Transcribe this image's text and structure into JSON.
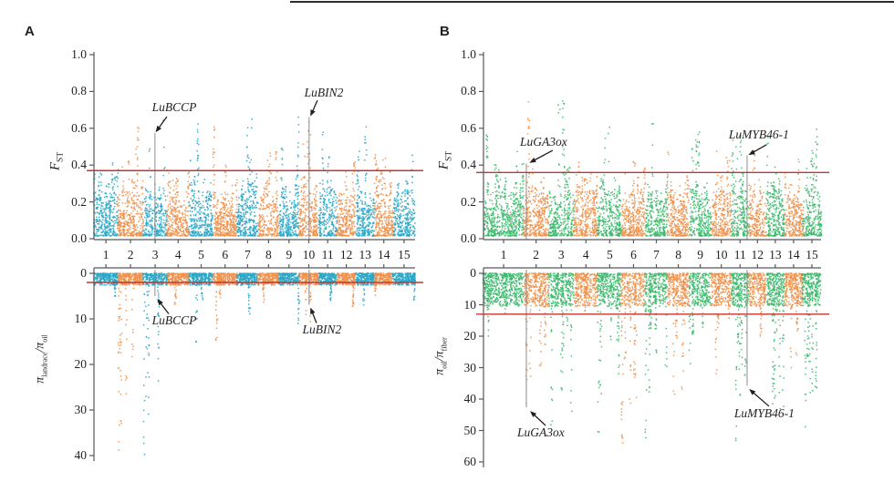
{
  "figure": {
    "panels": [
      {
        "letter": "A"
      },
      {
        "letter": "B"
      }
    ]
  },
  "colors": {
    "panel_a_points": [
      "#2BA7C6",
      "#F0914B"
    ],
    "panel_b_points": [
      "#3EB96E",
      "#F0914B"
    ],
    "threshold_line": "#C23531",
    "axis": "#57585A",
    "text": "#231F20",
    "leader_line": "#8C8C8C"
  },
  "chart_data": [
    {
      "id": "A-fst",
      "panel": "A",
      "position": "top",
      "type": "scatter",
      "ylabel": {
        "base": "F",
        "sub": "ST"
      },
      "ylim": [
        0,
        1.0
      ],
      "yticks": [
        "0.0",
        "0.2",
        "0.4",
        "0.6",
        "0.8",
        "1.0"
      ],
      "threshold": 0.37,
      "categories": [
        "1",
        "2",
        "3",
        "4",
        "5",
        "6",
        "7",
        "8",
        "9",
        "10",
        "11",
        "12",
        "13",
        "14",
        "15"
      ],
      "chrom_weights": [
        26,
        27.5,
        26,
        24,
        26,
        26,
        23,
        22.5,
        22,
        21,
        20,
        20.5,
        20.5,
        20,
        24
      ],
      "chrom_max": [
        0.37,
        0.63,
        0.66,
        0.4,
        0.66,
        0.63,
        0.68,
        0.52,
        0.68,
        0.67,
        0.63,
        0.5,
        0.62,
        0.44,
        0.54
      ],
      "annotations": [
        {
          "gene": "LuBCCP",
          "leader_fx": 0.19,
          "leader_v": 0.575,
          "label_fx": 0.25,
          "label_v": 0.713,
          "arrow": [
            0.227,
            0.663,
            0.192,
            0.578
          ]
        },
        {
          "gene": "LuBIN2",
          "leader_fx": 0.67,
          "leader_v": 0.66,
          "label_fx": 0.716,
          "label_v": 0.792,
          "arrow": [
            0.696,
            0.752,
            0.674,
            0.665
          ]
        }
      ]
    },
    {
      "id": "A-pi",
      "panel": "A",
      "position": "bottom",
      "type": "scatter",
      "ylabel": {
        "base": "π",
        "sub": "landrace",
        "mid": "/π",
        "sub2": "oil"
      },
      "ylim": [
        0,
        40
      ],
      "inverted": true,
      "yticks": [
        "0",
        "10",
        "20",
        "30",
        "40"
      ],
      "threshold": 2,
      "categories": [
        "1",
        "2",
        "3",
        "4",
        "5",
        "6",
        "7",
        "8",
        "9",
        "10",
        "11",
        "12",
        "13",
        "14",
        "15"
      ],
      "chrom_weights": [
        26,
        27.5,
        26,
        24,
        26,
        26,
        23,
        22.5,
        22,
        21,
        20,
        20.5,
        20.5,
        20,
        24
      ],
      "band_max": 2.6,
      "chrom_max": [
        6,
        39,
        40,
        8,
        16,
        15,
        9,
        7,
        11,
        12,
        6,
        8,
        7,
        5,
        6
      ],
      "annotations": [
        {
          "gene": "LuBCCP",
          "leader_fx": 0.19,
          "leader_v": 5.0,
          "label_fx": 0.25,
          "label_v": 10.4,
          "arrow": [
            0.233,
            8.9,
            0.197,
            5.6
          ]
        },
        {
          "gene": "LuBIN2",
          "leader_fx": 0.67,
          "leader_v": 6.9,
          "label_fx": 0.71,
          "label_v": 12.4,
          "arrow": [
            0.693,
            10.9,
            0.674,
            7.5
          ]
        }
      ]
    },
    {
      "id": "B-fst",
      "panel": "B",
      "position": "top",
      "type": "scatter",
      "ylabel": {
        "base": "F",
        "sub": "ST"
      },
      "ylim": [
        0,
        1.0
      ],
      "yticks": [
        "0.0",
        "0.2",
        "0.4",
        "0.6",
        "0.8",
        "1.0"
      ],
      "threshold": 0.36,
      "categories": [
        "1",
        "2",
        "3",
        "4",
        "5",
        "6",
        "7",
        "8",
        "9",
        "10",
        "11",
        "12",
        "13",
        "14",
        "15"
      ],
      "chrom_weights": [
        44,
        27,
        28,
        26,
        26,
        26,
        24,
        24,
        24,
        22,
        19,
        19,
        20,
        20,
        20
      ],
      "chrom_max": [
        0.57,
        0.75,
        0.85,
        0.35,
        0.67,
        0.45,
        0.63,
        0.5,
        0.65,
        0.52,
        0.63,
        0.48,
        0.63,
        0.47,
        0.62
      ],
      "annotations": [
        {
          "gene": "LuGA3ox",
          "leader_fx": 0.127,
          "leader_v": 0.408,
          "label_fx": 0.178,
          "label_v": 0.525,
          "arrow": [
            0.205,
            0.48,
            0.136,
            0.412
          ]
        },
        {
          "gene": "LuMYB46-1",
          "leader_fx": 0.781,
          "leader_v": 0.452,
          "label_fx": 0.816,
          "label_v": 0.564,
          "arrow": [
            0.838,
            0.51,
            0.785,
            0.455
          ]
        }
      ]
    },
    {
      "id": "B-pi",
      "panel": "B",
      "position": "bottom",
      "type": "scatter",
      "ylabel": {
        "base": "π",
        "sub": "oil",
        "mid": "/π",
        "sub2": "fiber"
      },
      "ylim": [
        0,
        60
      ],
      "inverted": true,
      "yticks": [
        "0",
        "10",
        "20",
        "30",
        "40",
        "50",
        "60"
      ],
      "threshold": 13,
      "categories": [
        "1",
        "2",
        "3",
        "4",
        "5",
        "6",
        "7",
        "8",
        "9",
        "10",
        "11",
        "12",
        "13",
        "14",
        "15"
      ],
      "chrom_weights": [
        44,
        27,
        28,
        26,
        26,
        26,
        24,
        24,
        24,
        22,
        19,
        19,
        20,
        20,
        20
      ],
      "band_max": 10.5,
      "chrom_max": [
        22,
        44,
        50,
        14,
        52,
        55,
        55,
        43,
        33,
        32,
        55,
        20,
        52,
        31,
        55
      ],
      "annotations": [
        {
          "gene": "LuGA3ox",
          "leader_fx": 0.127,
          "leader_v": 42.6,
          "label_fx": 0.17,
          "label_v": 50.7,
          "arrow": [
            0.184,
            48.4,
            0.138,
            43.8
          ]
        },
        {
          "gene": "LuMYB46-1",
          "leader_fx": 0.781,
          "leader_v": 35.7,
          "label_fx": 0.832,
          "label_v": 44.6,
          "arrow": [
            0.846,
            42.3,
            0.787,
            36.8
          ]
        }
      ]
    }
  ]
}
